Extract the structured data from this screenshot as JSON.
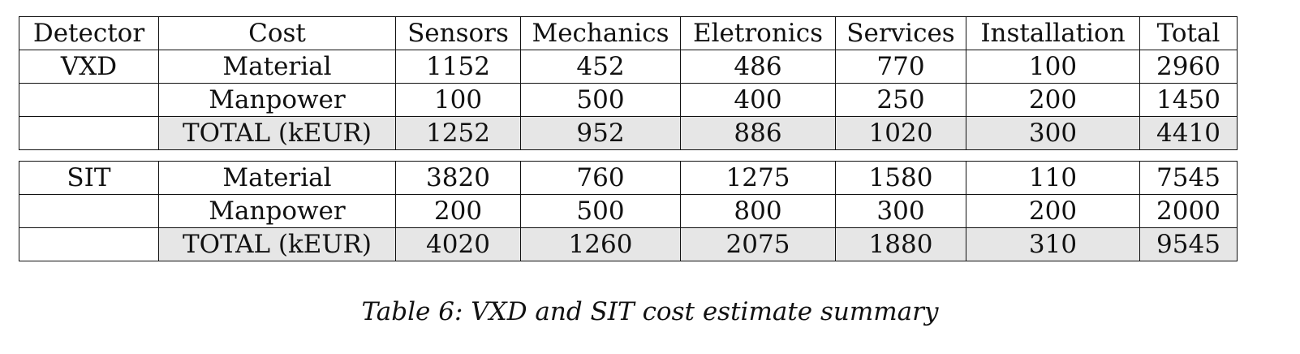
{
  "headers": [
    "Detector",
    "Cost",
    "Sensors",
    "Mechanics",
    "Eletronics",
    "Services",
    "Installation",
    "Total"
  ],
  "blocks": [
    {
      "detector": "VXD",
      "rows": [
        {
          "cost": "Material",
          "values": [
            "1152",
            "452",
            "486",
            "770",
            "100",
            "2960"
          ]
        },
        {
          "cost": "Manpower",
          "values": [
            "100",
            "500",
            "400",
            "250",
            "200",
            "1450"
          ]
        },
        {
          "cost": "TOTAL (kEUR)",
          "values": [
            "1252",
            "952",
            "886",
            "1020",
            "300",
            "4410"
          ]
        }
      ]
    },
    {
      "detector": "SIT",
      "rows": [
        {
          "cost": "Material",
          "values": [
            "3820",
            "760",
            "1275",
            "1580",
            "110",
            "7545"
          ]
        },
        {
          "cost": "Manpower",
          "values": [
            "200",
            "500",
            "800",
            "300",
            "200",
            "2000"
          ]
        },
        {
          "cost": "TOTAL (kEUR)",
          "values": [
            "4020",
            "1260",
            "2075",
            "1880",
            "310",
            "9545"
          ]
        }
      ]
    }
  ],
  "caption": "Table 6: VXD and SIT cost estimate summary"
}
